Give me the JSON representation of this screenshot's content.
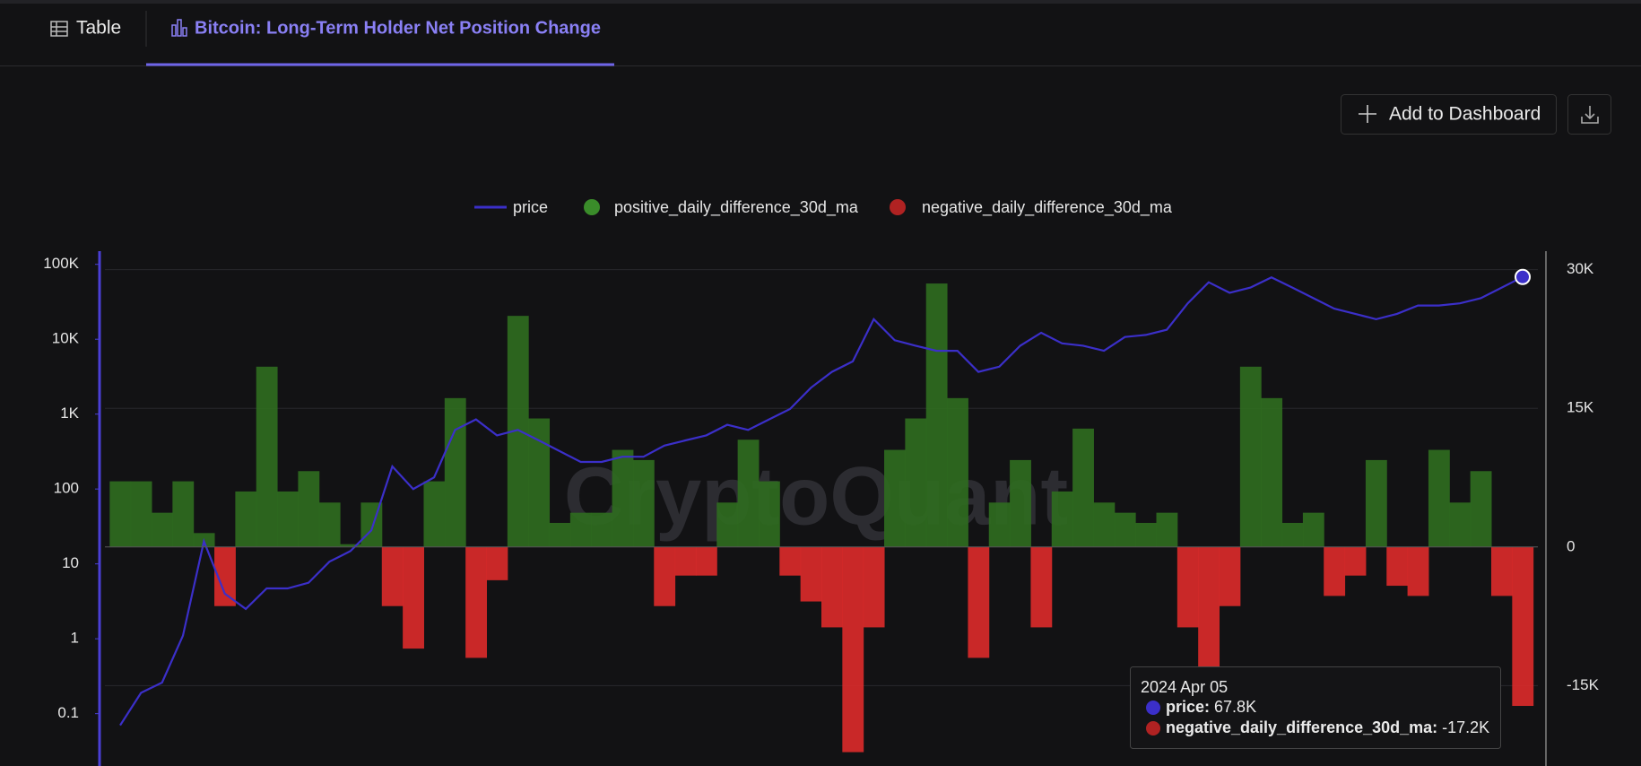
{
  "page": {
    "tabs": [
      "Table",
      "Bitcoin: Long-Term Holder Net Position Change"
    ],
    "button": "Add to Dashboard"
  },
  "chart_data": {
    "type": "line",
    "watermark": "CryptoQuant",
    "yscale": "log",
    "grid": true,
    "legend": "top",
    "ylim": [
      0.02,
      150000
    ],
    "yticks": [
      0.1,
      1,
      10,
      100,
      {
        "value": 1000,
        "label": "1K"
      },
      {
        "value": 10000,
        "label": "10K"
      },
      {
        "value": 100000,
        "label": "100K"
      }
    ],
    "y2lim": [
      -23700,
      32000
    ],
    "y2ticks": [
      {
        "value": -15000,
        "label": "-15K"
      },
      0,
      {
        "value": 15000,
        "label": "15K"
      },
      {
        "value": 30000,
        "label": "30K"
      }
    ],
    "series": [
      {
        "name": "price",
        "type": "line",
        "color": "#3b2fc9",
        "values": [
          0.07,
          0.19,
          0.26,
          1.1,
          20,
          4,
          2.5,
          4.7,
          4.7,
          5.6,
          10.7,
          14.8,
          28,
          200,
          100,
          143,
          615,
          850,
          520,
          615,
          445,
          320,
          230,
          230,
          270,
          270,
          380,
          445,
          520,
          720,
          615,
          850,
          1170,
          2250,
          3660,
          5060,
          18500,
          9700,
          8200,
          7000,
          7000,
          3660,
          4300,
          8200,
          12200,
          8800,
          8200,
          7000,
          10700,
          11400,
          13400,
          30100,
          57600,
          41700,
          49000,
          67000,
          49000,
          35400,
          25600,
          21800,
          18500,
          21800,
          28200,
          28200,
          30100,
          35400,
          49000,
          67800
        ]
      },
      {
        "name": "positive_daily_difference_30d_ma",
        "type": "bar",
        "axis": "y2",
        "color": "#2f6b20",
        "values": [
          7100,
          7100,
          3700,
          7100,
          1500,
          null,
          6000,
          19500,
          6000,
          8200,
          4800,
          300,
          4800,
          null,
          null,
          7100,
          16100,
          null,
          null,
          25000,
          13900,
          2600,
          3700,
          3700,
          10500,
          9400,
          null,
          null,
          null,
          4800,
          11600,
          7100,
          null,
          null,
          null,
          null,
          null,
          10500,
          13900,
          28500,
          16100,
          null,
          4800,
          9400,
          null,
          6000,
          12800,
          4800,
          3700,
          2600,
          3700,
          null,
          null,
          null,
          19500,
          16100,
          2600,
          3700,
          null,
          null,
          9400,
          null,
          null,
          10500,
          4800,
          8200,
          null,
          null
        ]
      },
      {
        "name": "negative_daily_difference_30d_ma",
        "type": "bar",
        "axis": "y2",
        "color": "#d92a2a",
        "values": [
          null,
          null,
          null,
          null,
          null,
          -6400,
          null,
          null,
          null,
          null,
          null,
          null,
          null,
          -6400,
          -11000,
          null,
          null,
          -12000,
          -3600,
          null,
          null,
          null,
          null,
          null,
          null,
          null,
          -6400,
          -3100,
          -3100,
          null,
          null,
          null,
          -3100,
          -5900,
          -8700,
          -22200,
          -8700,
          null,
          null,
          null,
          null,
          -12000,
          null,
          null,
          -8700,
          null,
          null,
          null,
          null,
          null,
          null,
          -8700,
          -13200,
          -6400,
          null,
          null,
          null,
          null,
          -5300,
          -3100,
          null,
          -4200,
          -5300,
          null,
          null,
          null,
          -5300,
          -17200
        ]
      }
    ],
    "tooltip": {
      "date": "2024 Apr 05",
      "separator": ":",
      "labels": [
        "67.8K",
        "-17.2K"
      ]
    }
  }
}
